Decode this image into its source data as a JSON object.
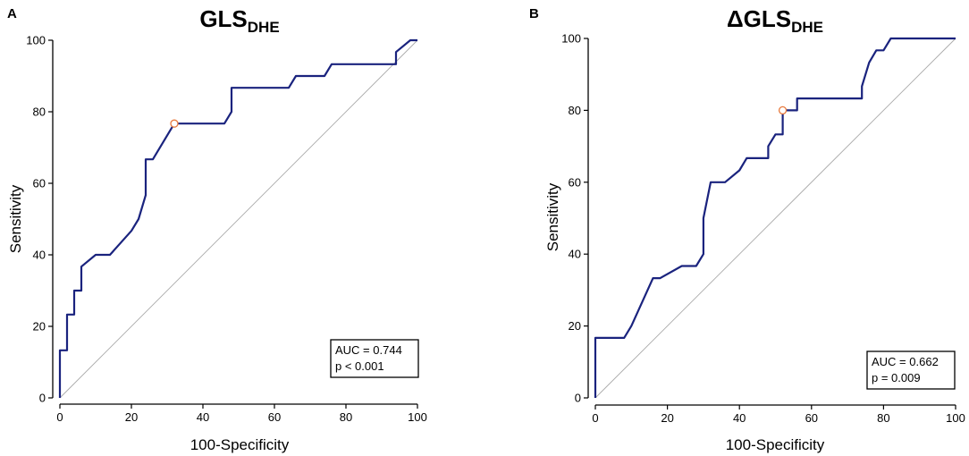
{
  "chart_data": [
    {
      "type": "line",
      "panel_label": "A",
      "title": "GLS",
      "title_subscript": "DHE",
      "xlabel": "100-Specificity",
      "ylabel": "Sensitivity",
      "xlim": [
        0,
        100
      ],
      "ylim": [
        0,
        100
      ],
      "xticks": [
        0,
        20,
        40,
        60,
        80,
        100
      ],
      "yticks": [
        0,
        20,
        40,
        60,
        80,
        100
      ],
      "series": [
        {
          "name": "ROC curve",
          "color": "#1a237e",
          "x": [
            0,
            0,
            1,
            1,
            2,
            2,
            4,
            4,
            6,
            6,
            10,
            14,
            20,
            22,
            24,
            24,
            26,
            32,
            46,
            48,
            48,
            64,
            66,
            74,
            76,
            93,
            94,
            94,
            98,
            100
          ],
          "y": [
            0,
            13.3,
            13.3,
            13.3,
            13.3,
            23.3,
            23.3,
            30,
            30,
            36.7,
            40,
            40,
            46.7,
            50,
            56.7,
            66.7,
            66.7,
            76.7,
            76.7,
            80,
            86.7,
            86.7,
            90,
            90,
            93.3,
            93.3,
            93.3,
            96.7,
            100,
            100
          ]
        },
        {
          "name": "Reference line",
          "color": "#aaaaaa",
          "x": [
            0,
            100
          ],
          "y": [
            0,
            100
          ]
        }
      ],
      "optimal_point": {
        "x": 32,
        "y": 76.7,
        "color": "#e87a3e"
      },
      "annotation": {
        "auc": "AUC = 0.744",
        "p": "p < 0.001"
      }
    },
    {
      "type": "line",
      "panel_label": "B",
      "title": "ΔGLS",
      "title_subscript": "DHE",
      "xlabel": "100-Specificity",
      "ylabel": "Sensitivity",
      "xlim": [
        0,
        100
      ],
      "ylim": [
        0,
        100
      ],
      "xticks": [
        0,
        20,
        40,
        60,
        80,
        100
      ],
      "yticks": [
        0,
        20,
        40,
        60,
        80,
        100
      ],
      "series": [
        {
          "name": "ROC curve",
          "color": "#1a237e",
          "x": [
            0,
            0,
            8,
            10,
            16,
            18,
            24,
            28,
            30,
            30,
            32,
            34,
            36,
            40,
            42,
            48,
            48,
            50,
            52,
            52,
            56,
            56,
            74,
            74,
            76,
            78,
            80,
            82,
            100
          ],
          "y": [
            0,
            16.7,
            16.7,
            20,
            33.3,
            33.3,
            36.7,
            36.7,
            40,
            50,
            60,
            60,
            60,
            63.3,
            66.7,
            66.7,
            70,
            73.3,
            73.3,
            80,
            80,
            83.3,
            83.3,
            86.7,
            93.3,
            96.7,
            96.7,
            100,
            100
          ]
        },
        {
          "name": "Reference line",
          "color": "#aaaaaa",
          "x": [
            0,
            100
          ],
          "y": [
            0,
            100
          ]
        }
      ],
      "optimal_point": {
        "x": 52,
        "y": 80,
        "color": "#e87a3e"
      },
      "annotation": {
        "auc": "AUC = 0.662",
        "p": "p = 0.009"
      }
    }
  ]
}
